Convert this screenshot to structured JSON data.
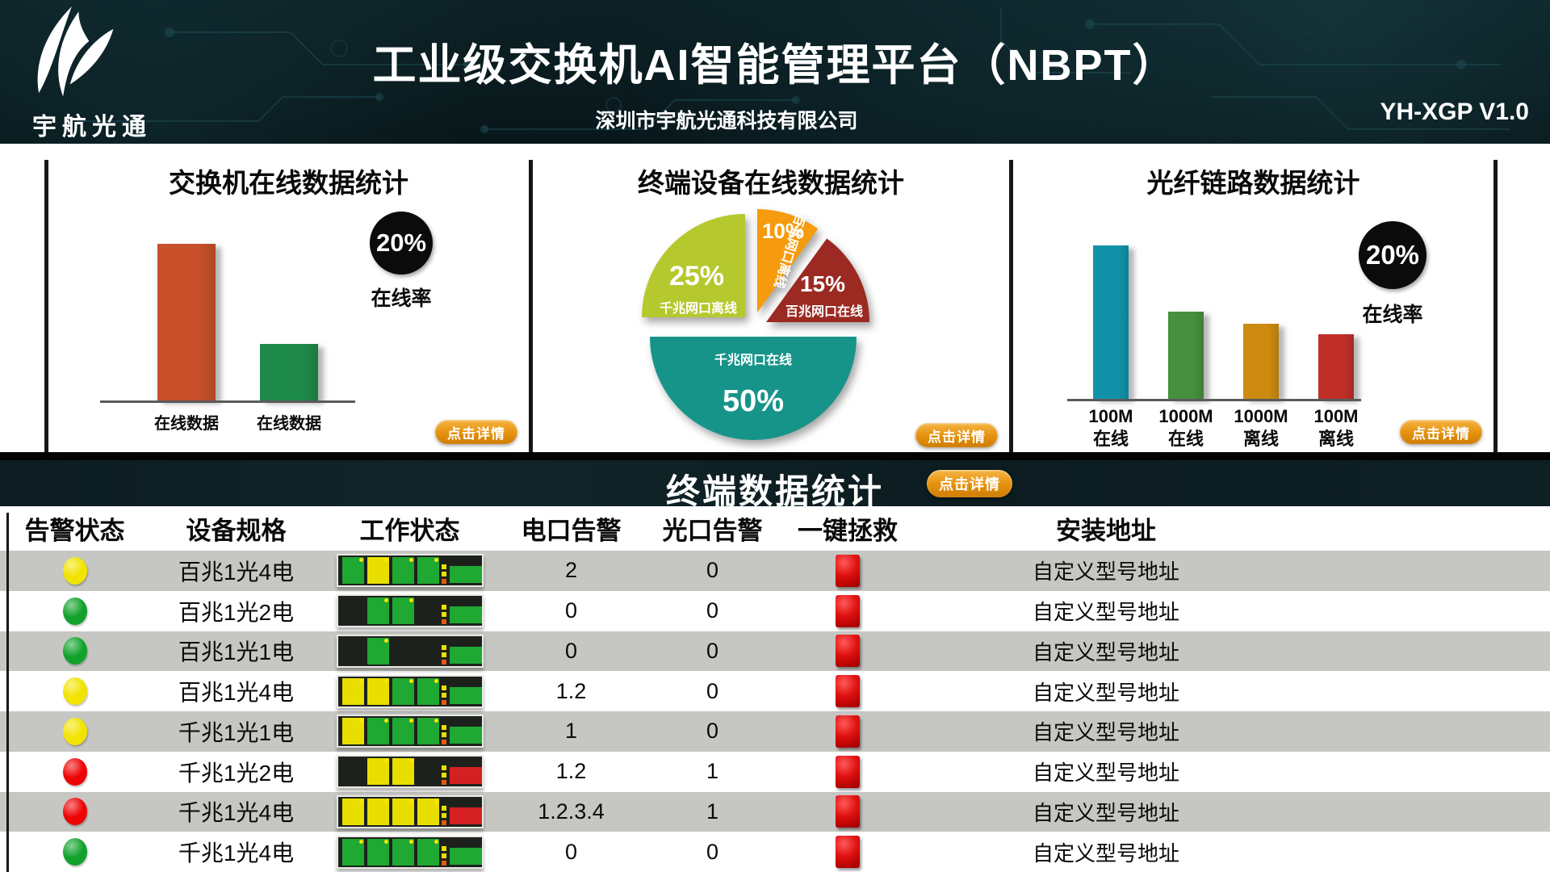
{
  "header": {
    "logo_text": "宇航光通",
    "title": "工业级交换机AI智能管理平台（NBPT）",
    "subtitle": "深圳市宇航光通科技有限公司",
    "version": "YH-XGP V1.0"
  },
  "details_button_label": "点击详情",
  "panels": {
    "switch": {
      "title": "交换机在线数据统计",
      "badge_value": "20%",
      "badge_label": "在线率",
      "bars": {
        "values": [
          100,
          36
        ],
        "colors": [
          "#c8502a",
          "#1e8a4a"
        ],
        "categories": [
          "在线数据",
          "在线数据"
        ]
      }
    },
    "terminal_pie": {
      "title": "终端设备在线数据统计",
      "slices": [
        {
          "pct": "25%",
          "label": "千兆网口离线",
          "value": 25,
          "color": "#b5c92f"
        },
        {
          "pct": "10%",
          "label": "百兆网口离线",
          "value": 10,
          "color": "#f59b0d"
        },
        {
          "pct": "15%",
          "label": "百兆网口在线",
          "value": 15,
          "color": "#9b2a22"
        },
        {
          "pct": "50%",
          "label": "千兆网口在线",
          "value": 50,
          "color": "#17948a"
        }
      ]
    },
    "fiber": {
      "title": "光纤链路数据统计",
      "badge_value": "20%",
      "badge_label": "在线率",
      "bars": {
        "values": [
          100,
          57,
          49,
          42
        ],
        "colors": [
          "#1292a9",
          "#47903d",
          "#cc8a10",
          "#bf2f28"
        ],
        "categories": [
          "100M\n在线",
          "1000M\n在线",
          "1000M\n离线",
          "100M\n离线"
        ]
      }
    }
  },
  "section": {
    "title": "终端数据统计"
  },
  "table": {
    "columns": [
      "告警状态",
      "设备规格",
      "工作状态",
      "电口告警",
      "光口告警",
      "一键拯救",
      "安装地址"
    ],
    "rows": [
      {
        "alarm": "yellow",
        "spec": "百兆1光4电",
        "ports": [
          "green",
          "yellow",
          "green",
          "green"
        ],
        "optical": "green",
        "electrical_alarm": "2",
        "optical_alarm": "0",
        "address": "自定义型号地址"
      },
      {
        "alarm": "green",
        "spec": "百兆1光2电",
        "ports": [
          null,
          "green",
          "green",
          null
        ],
        "optical": "green",
        "electrical_alarm": "0",
        "optical_alarm": "0",
        "address": "自定义型号地址"
      },
      {
        "alarm": "green",
        "spec": "百兆1光1电",
        "ports": [
          null,
          "green",
          null,
          null
        ],
        "optical": "green",
        "electrical_alarm": "0",
        "optical_alarm": "0",
        "address": "自定义型号地址"
      },
      {
        "alarm": "yellow",
        "spec": "百兆1光4电",
        "ports": [
          "yellow",
          "yellow",
          "green",
          "green"
        ],
        "optical": "green",
        "electrical_alarm": "1.2",
        "optical_alarm": "0",
        "address": "自定义型号地址"
      },
      {
        "alarm": "yellow",
        "spec": "千兆1光1电",
        "ports": [
          "yellow",
          "green",
          "green",
          "green"
        ],
        "optical": "green",
        "electrical_alarm": "1",
        "optical_alarm": "0",
        "address": "自定义型号地址"
      },
      {
        "alarm": "red",
        "spec": "千兆1光2电",
        "ports": [
          null,
          "yellow",
          "yellow",
          null
        ],
        "optical": "red",
        "electrical_alarm": "1.2",
        "optical_alarm": "1",
        "address": "自定义型号地址"
      },
      {
        "alarm": "red",
        "spec": "千兆1光4电",
        "ports": [
          "yellow",
          "yellow",
          "yellow",
          "yellow"
        ],
        "optical": "red",
        "electrical_alarm": "1.2.3.4",
        "optical_alarm": "1",
        "address": "自定义型号地址"
      },
      {
        "alarm": "green",
        "spec": "千兆1光4电",
        "ports": [
          "green",
          "green",
          "green",
          "green"
        ],
        "optical": "green",
        "electrical_alarm": "0",
        "optical_alarm": "0",
        "address": "自定义型号地址"
      }
    ]
  },
  "theme": {
    "button_orange": "#e6930f",
    "dark_band": "#0d1e22",
    "row_shade": "#c6c7c3",
    "status_colors": {
      "yellow": "#f2e300",
      "green": "#12a22c",
      "red": "#ee0404"
    },
    "port_colors": {
      "green": "#1fa832",
      "yellow": "#e8df00",
      "red": "#d42020"
    }
  },
  "chart_data": [
    {
      "type": "bar",
      "title": "交换机在线数据统计",
      "categories": [
        "在线数据",
        "在线数据"
      ],
      "values": [
        100,
        36
      ],
      "value_units": "relative-height-%",
      "colors": [
        "#c8502a",
        "#1e8a4a"
      ],
      "annotations": [
        {
          "text": "20%",
          "label": "在线率"
        }
      ],
      "grid": false
    },
    {
      "type": "pie",
      "title": "终端设备在线数据统计",
      "labels": [
        "千兆网口离线",
        "百兆网口离线",
        "百兆网口在线",
        "千兆网口在线"
      ],
      "values": [
        25,
        10,
        15,
        50
      ],
      "unit": "%",
      "colors": [
        "#b5c92f",
        "#f59b0d",
        "#9b2a22",
        "#17948a"
      ],
      "style": "exploded"
    },
    {
      "type": "bar",
      "title": "光纤链路数据统计",
      "categories": [
        "100M 在线",
        "1000M 在线",
        "1000M 离线",
        "100M 离线"
      ],
      "values": [
        100,
        57,
        49,
        42
      ],
      "value_units": "relative-height-%",
      "colors": [
        "#1292a9",
        "#47903d",
        "#cc8a10",
        "#bf2f28"
      ],
      "annotations": [
        {
          "text": "20%",
          "label": "在线率"
        }
      ],
      "grid": false
    }
  ]
}
